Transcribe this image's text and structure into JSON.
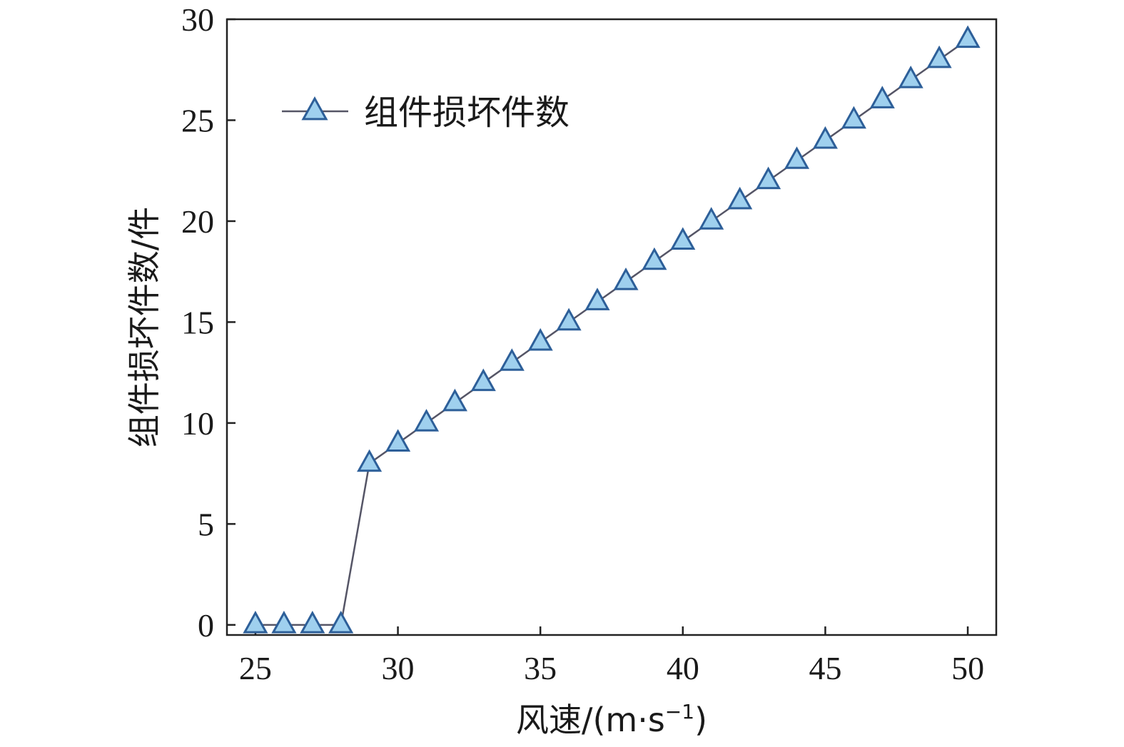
{
  "chart_data": {
    "type": "line",
    "title": "",
    "xlabel": "风速/(m·s",
    "xlabel_sup": "−1",
    "xlabel_close": ")",
    "ylabel": "组件损坏件数/件",
    "xlim": [
      24,
      51
    ],
    "ylim": [
      -0.5,
      30
    ],
    "xticks": [
      25,
      30,
      35,
      40,
      45,
      50
    ],
    "yticks": [
      0,
      5,
      10,
      15,
      20,
      25,
      30
    ],
    "grid": false,
    "legend_position": "top-left",
    "series": [
      {
        "name": "组件损坏件数",
        "marker": "triangle",
        "line_color": "#555566",
        "marker_fill": "#9fd0ee",
        "marker_stroke": "#2d5f99",
        "x": [
          25,
          26,
          27,
          28,
          29,
          30,
          31,
          32,
          33,
          34,
          35,
          36,
          37,
          38,
          39,
          40,
          41,
          42,
          43,
          44,
          45,
          46,
          47,
          48,
          49,
          50
        ],
        "y": [
          0,
          0,
          0,
          0,
          8,
          9,
          10,
          11,
          12,
          13,
          14,
          15,
          16,
          17,
          18,
          19,
          20,
          21,
          22,
          23,
          24,
          25,
          26,
          27,
          28,
          29
        ]
      }
    ]
  }
}
